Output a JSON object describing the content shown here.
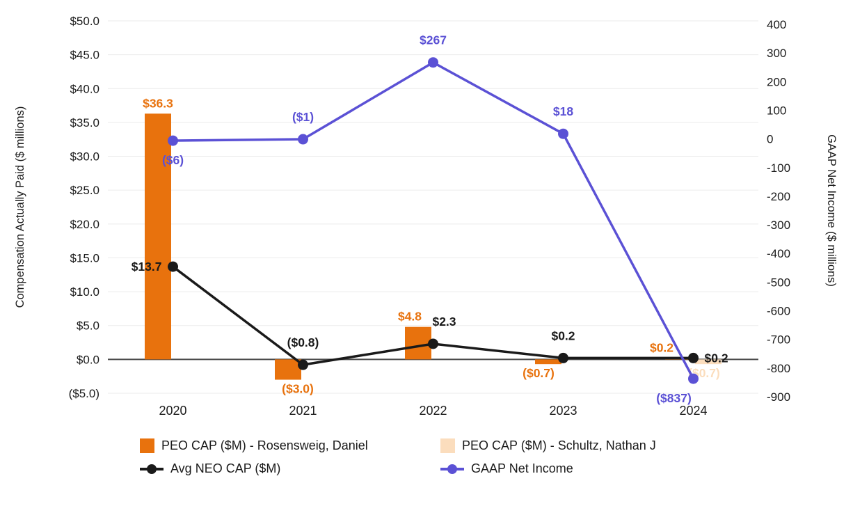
{
  "chart_data": {
    "type": "combo-bar-line",
    "categories": [
      "2020",
      "2021",
      "2022",
      "2023",
      "2024"
    ],
    "series": [
      {
        "name": "PEO CAP ($M) - Rosensweig, Daniel",
        "kind": "bar",
        "axis": "left",
        "color": "#E8720D",
        "values": [
          36.3,
          -3.0,
          4.8,
          -0.7,
          0.2
        ],
        "labels": [
          "$36.3",
          "($3.0)",
          "$4.8",
          "($0.7)",
          "$0.2"
        ],
        "label_dx": [
          0,
          14,
          -12,
          -14,
          -24
        ]
      },
      {
        "name": "PEO CAP ($M) - Schultz, Nathan J",
        "kind": "bar",
        "axis": "left",
        "color": "#FBDDBD",
        "values": [
          null,
          null,
          null,
          null,
          -0.7
        ],
        "labels": [
          null,
          null,
          null,
          null,
          "($0.7)"
        ],
        "label_dx": [
          0,
          0,
          0,
          0,
          -6
        ]
      },
      {
        "name": "Avg NEO CAP ($M)",
        "kind": "line",
        "axis": "left",
        "color": "#1A1A1A",
        "values": [
          13.7,
          -0.8,
          2.3,
          0.2,
          0.2
        ],
        "labels": [
          "$13.7",
          "($0.8)",
          "$2.3",
          "$0.2",
          "$0.2"
        ],
        "label_pos": [
          "left",
          "above",
          "above",
          "above",
          "right"
        ],
        "label_dx": [
          0,
          0,
          16,
          0,
          0
        ]
      },
      {
        "name": "GAAP Net Income",
        "kind": "line",
        "axis": "right",
        "color": "#5B51D5",
        "values": [
          -6,
          -1,
          267,
          18,
          -837
        ],
        "labels": [
          "($6)",
          "($1)",
          "$267",
          "$18",
          "($837)"
        ],
        "label_pos": [
          "below",
          "above",
          "above",
          "above",
          "below"
        ],
        "label_dx": [
          0,
          0,
          0,
          0,
          -28
        ]
      }
    ],
    "left_axis": {
      "title": "Compensation Actually Paid ($ millions)",
      "min": -5,
      "max": 50,
      "step": 5,
      "tick_labels": [
        "$50.0",
        "$45.0",
        "$40.0",
        "$35.0",
        "$30.0",
        "$25.0",
        "$20.0",
        "$15.0",
        "$10.0",
        "$5.0",
        "$0.0",
        "($5.0)"
      ]
    },
    "right_axis": {
      "title": "GAAP Net Income ($ millions)",
      "min": -900,
      "max": 400,
      "step": 100,
      "tick_labels": [
        "400",
        "300",
        "200",
        "100",
        "0",
        "-100",
        "-200",
        "-300",
        "-400",
        "-500",
        "-600",
        "-700",
        "-800",
        "-900"
      ]
    },
    "grid": true,
    "legend_position": "bottom"
  },
  "colors": {
    "background": "#FFFFFF",
    "grid": "#EBEBEB",
    "zero_line": "#4A4A4A",
    "text": "#1A1A1A"
  }
}
